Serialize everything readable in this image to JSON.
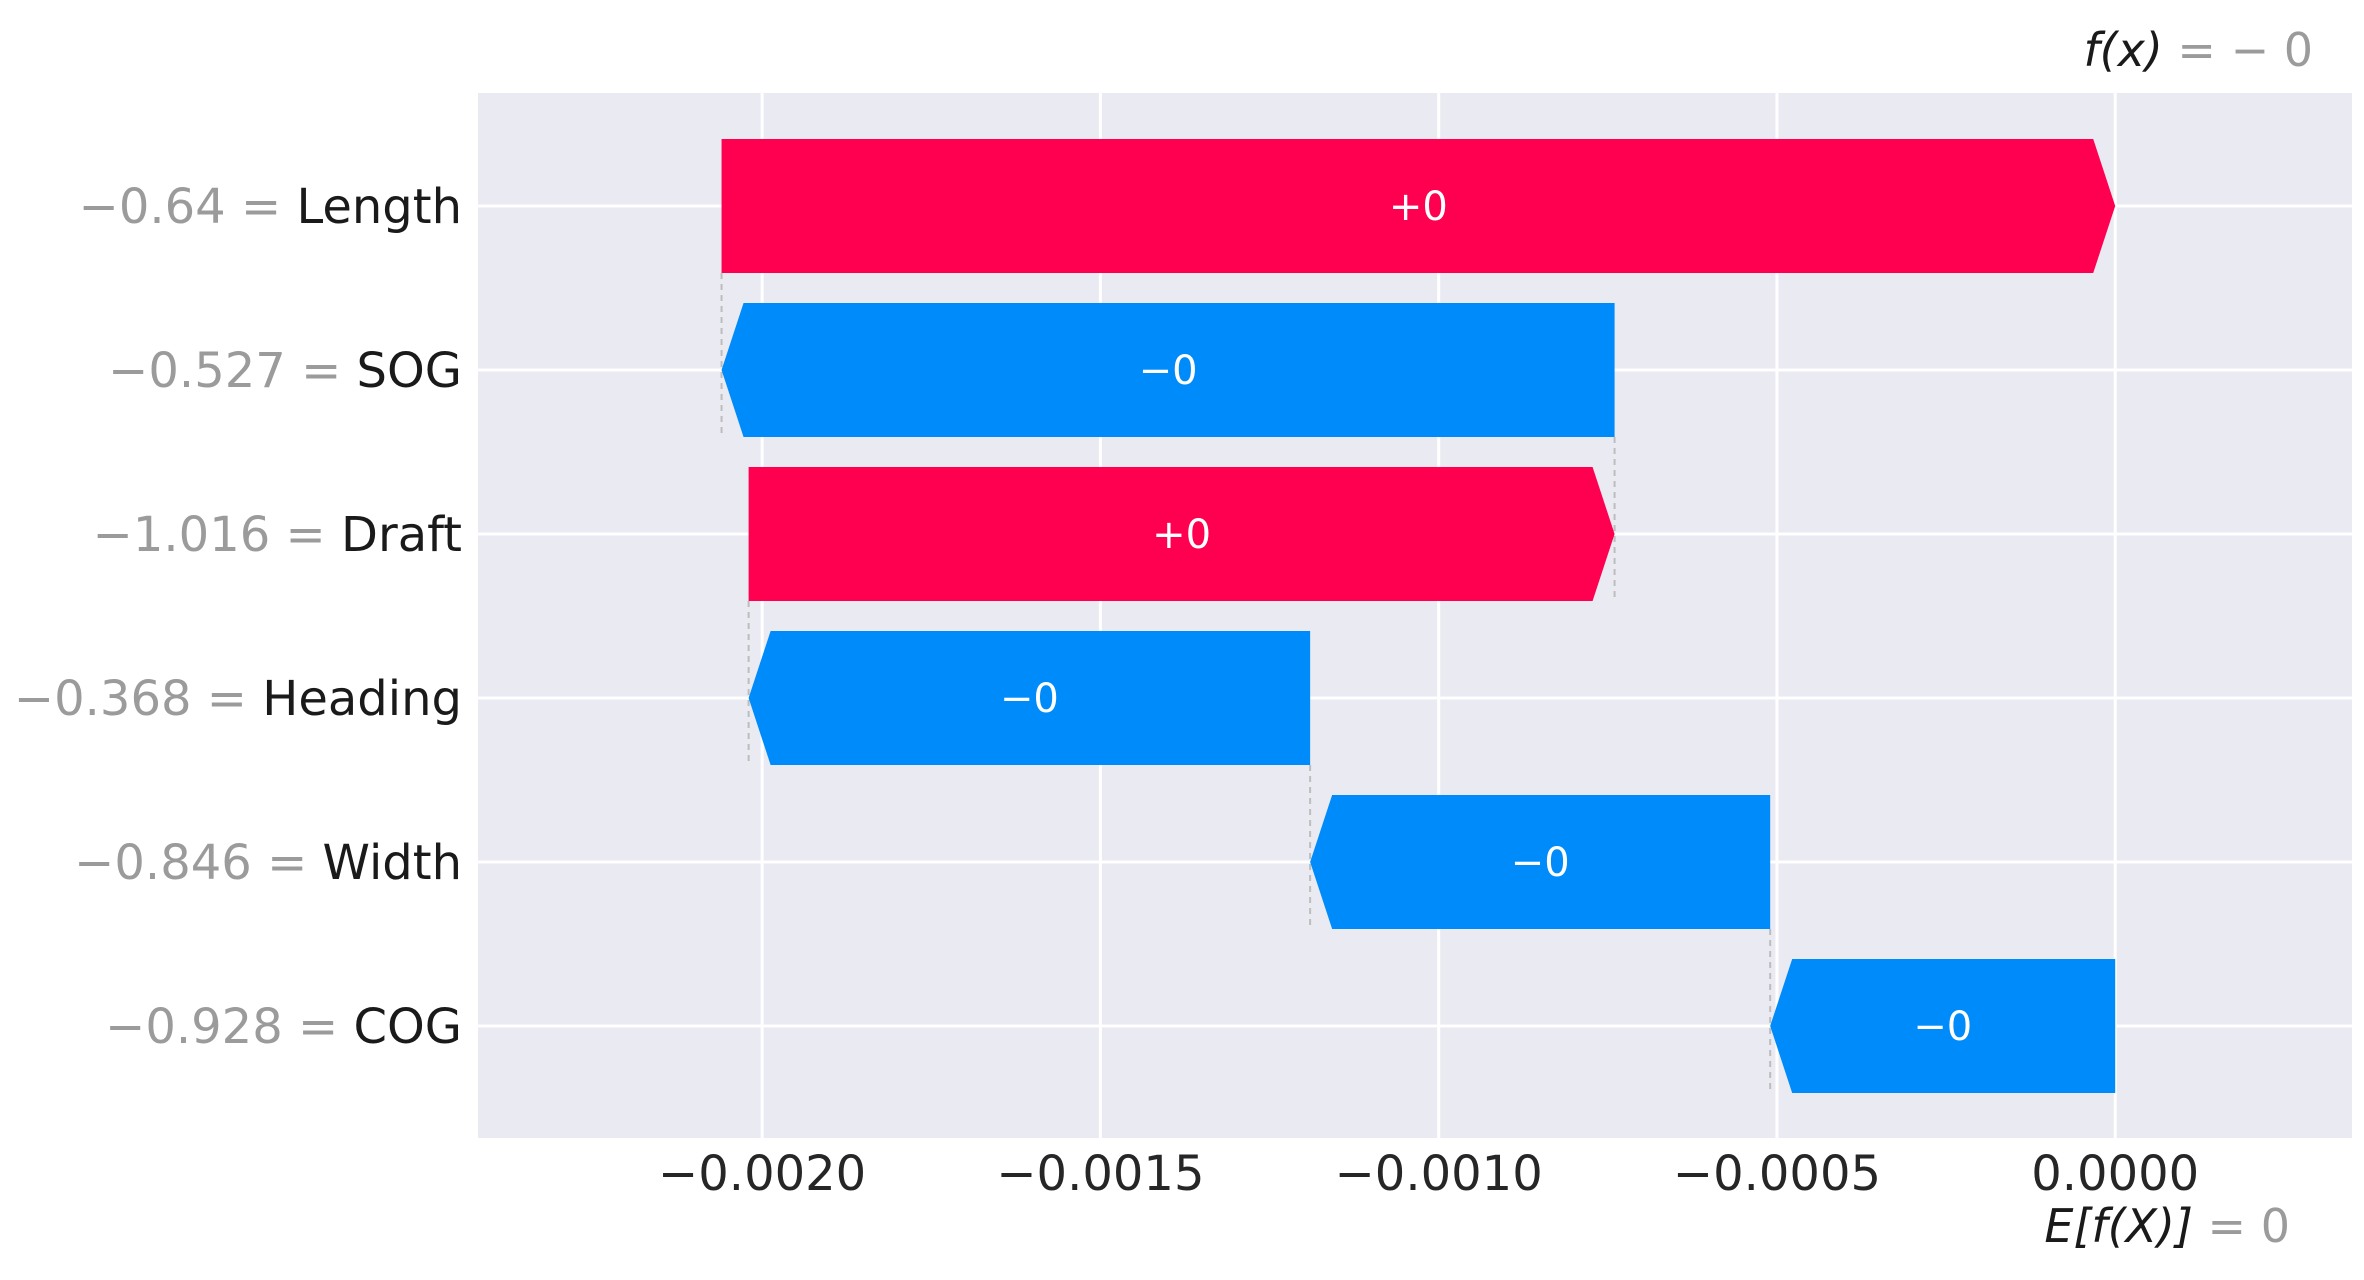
{
  "chart_data": {
    "type": "waterfall",
    "features": [
      {
        "value_text": "−0.64",
        "name": "Length",
        "start": -0.00206,
        "end": 0.0,
        "sign": "positive",
        "label": "+0"
      },
      {
        "value_text": "−0.527",
        "name": "SOG",
        "start": -0.00074,
        "end": -0.00206,
        "sign": "negative",
        "label": "−0"
      },
      {
        "value_text": "−1.016",
        "name": "Draft",
        "start": -0.00202,
        "end": -0.00074,
        "sign": "positive",
        "label": "+0"
      },
      {
        "value_text": "−0.368",
        "name": "Heading",
        "start": -0.00119,
        "end": -0.00202,
        "sign": "negative",
        "label": "−0"
      },
      {
        "value_text": "−0.846",
        "name": "Width",
        "start": -0.00051,
        "end": -0.00119,
        "sign": "negative",
        "label": "−0"
      },
      {
        "value_text": "−0.928",
        "name": "COG",
        "start": 0.0,
        "end": -0.00051,
        "sign": "negative",
        "label": "−0"
      }
    ],
    "xlim": [
      -0.00242,
      0.00035
    ],
    "xticks": [
      -0.002,
      -0.0015,
      -0.001,
      -0.0005,
      0.0
    ],
    "xtick_labels": [
      "−0.0020",
      "−0.0015",
      "−0.0010",
      "−0.0005",
      "0.0000"
    ],
    "fx": {
      "label": "f(x)",
      "value": "− 0"
    },
    "efx": {
      "label": "E[f(X)]",
      "value": "= 0"
    },
    "colors": {
      "positive": "#ff0051",
      "negative": "#008bfb",
      "background": "#eaeaf2",
      "grid": "#ffffff"
    },
    "grid": true
  }
}
